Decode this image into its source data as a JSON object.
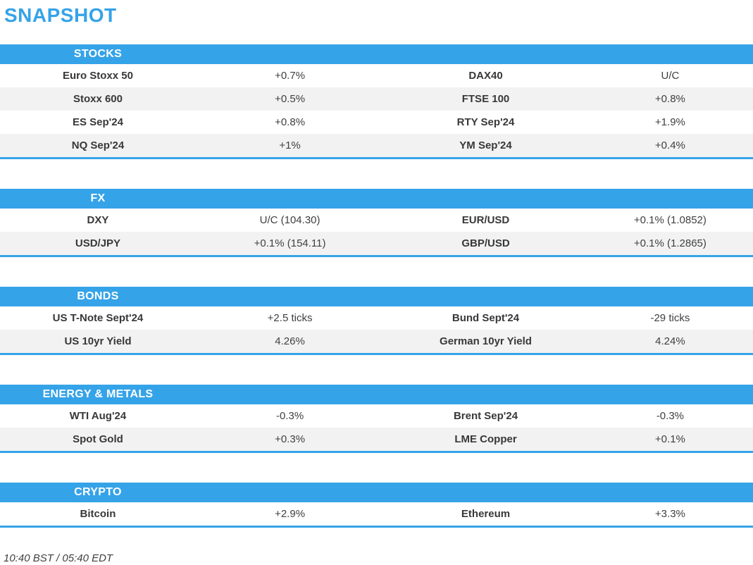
{
  "page": {
    "title": "SNAPSHOT",
    "footer": "10:40 BST / 05:40 EDT"
  },
  "colors": {
    "accent_blue": "#35a3e8",
    "row_alt_gray": "#f2f2f2",
    "text_dark": "#404040"
  },
  "sections": [
    {
      "header": "STOCKS",
      "rows": [
        {
          "l1": "Euro Stoxx 50",
          "v1": "+0.7%",
          "l2": "DAX40",
          "v2": "U/C"
        },
        {
          "l1": "Stoxx 600",
          "v1": "+0.5%",
          "l2": "FTSE 100",
          "v2": "+0.8%"
        },
        {
          "l1": "ES Sep'24",
          "v1": "+0.8%",
          "l2": "RTY Sep'24",
          "v2": "+1.9%"
        },
        {
          "l1": "NQ Sep'24",
          "v1": "+1%",
          "l2": "YM Sep'24",
          "v2": "+0.4%"
        }
      ]
    },
    {
      "header": "FX",
      "rows": [
        {
          "l1": "DXY",
          "v1": "U/C (104.30)",
          "l2": "EUR/USD",
          "v2": "+0.1% (1.0852)"
        },
        {
          "l1": "USD/JPY",
          "v1": "+0.1% (154.11)",
          "l2": "GBP/USD",
          "v2": "+0.1% (1.2865)"
        }
      ]
    },
    {
      "header": "BONDS",
      "rows": [
        {
          "l1": "US T-Note Sept'24",
          "v1": "+2.5 ticks",
          "l2": "Bund Sept'24",
          "v2": "-29 ticks"
        },
        {
          "l1": "US 10yr Yield",
          "v1": "4.26%",
          "l2": "German 10yr Yield",
          "v2": "4.24%"
        }
      ]
    },
    {
      "header": "ENERGY & METALS",
      "rows": [
        {
          "l1": "WTI Aug'24",
          "v1": "-0.3%",
          "l2": "Brent Sep'24",
          "v2": "-0.3%"
        },
        {
          "l1": "Spot Gold",
          "v1": "+0.3%",
          "l2": "LME Copper",
          "v2": "+0.1%"
        }
      ]
    },
    {
      "header": "CRYPTO",
      "rows": [
        {
          "l1": "Bitcoin",
          "v1": "+2.9%",
          "l2": "Ethereum",
          "v2": "+3.3%"
        }
      ]
    }
  ]
}
